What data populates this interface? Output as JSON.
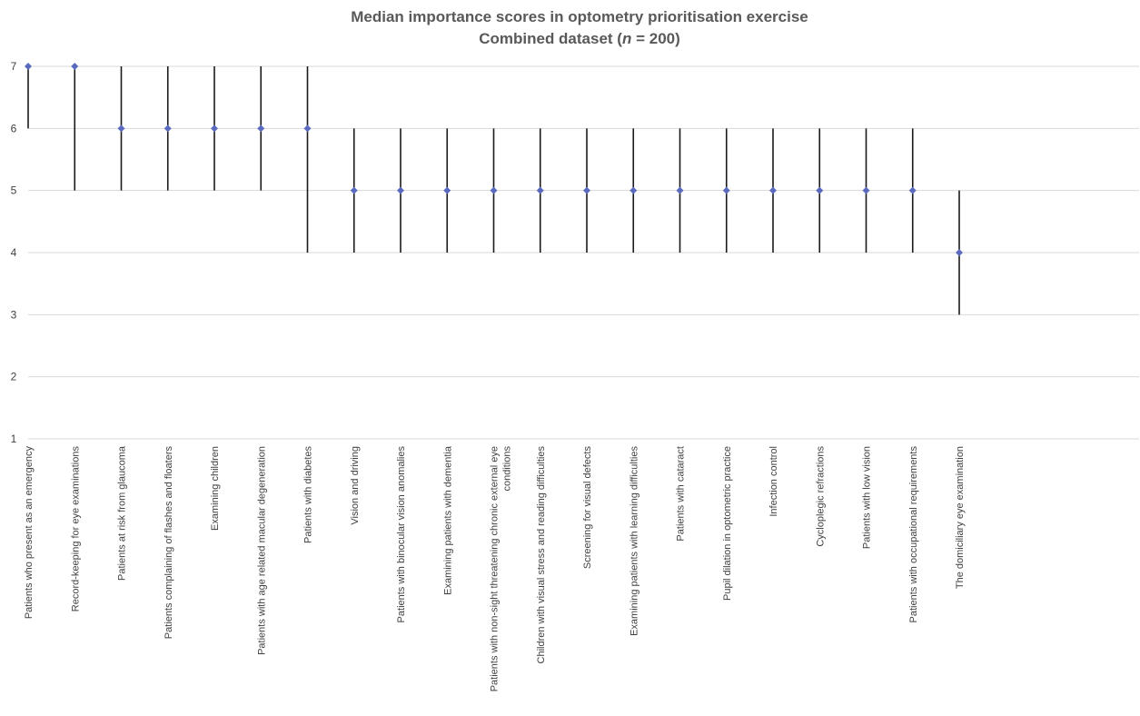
{
  "chart_data": {
    "type": "scatter",
    "title_line1": "Median importance scores in optometry prioritisation exercise",
    "title_line2_prefix": "Combined dataset (",
    "title_line2_italic": "n",
    "title_line2_suffix": " = 200)",
    "xlabel": "",
    "ylabel": "",
    "ylim": [
      1,
      7
    ],
    "yticks": [
      1,
      2,
      3,
      4,
      5,
      6,
      7
    ],
    "grid": true,
    "legend": "none",
    "marker_color": "#5a6bbf",
    "range_color": "#1a1a1a",
    "categories": [
      [
        "Patients who present as an emergency"
      ],
      [
        "Record-keeping for eye examinations"
      ],
      [
        "Patients at risk from glaucoma"
      ],
      [
        "Patients complaining of flashes and floaters"
      ],
      [
        "Examining children"
      ],
      [
        "Patients with age related macular degeneration"
      ],
      [
        "Patients with diabetes"
      ],
      [
        "Vision and driving"
      ],
      [
        "Patients with binocular vision anomalies"
      ],
      [
        "Examining patients with dementia"
      ],
      [
        "Patients with non-sight threatening chronic external eye",
        "conditions"
      ],
      [
        "Children with visual stress and reading difficulties"
      ],
      [
        "Screening for visual defects"
      ],
      [
        "Examining patients with learning difficulties"
      ],
      [
        "Patients with cataract"
      ],
      [
        "Pupil dilation in optometric practice"
      ],
      [
        "Infection control"
      ],
      [
        "Cycloplegic refractions"
      ],
      [
        "Patients with low vision"
      ],
      [
        "Patients with occupational requirements"
      ],
      [
        "The domiciliary eye examination"
      ]
    ],
    "series": [
      {
        "median": [
          7,
          7,
          6,
          6,
          6,
          6,
          6,
          5,
          5,
          5,
          5,
          5,
          5,
          5,
          5,
          5,
          5,
          5,
          5,
          5,
          4
        ],
        "low": [
          6,
          5,
          5,
          5,
          5,
          5,
          4,
          4,
          4,
          4,
          4,
          4,
          4,
          4,
          4,
          4,
          4,
          4,
          4,
          4,
          3
        ],
        "high": [
          7,
          7,
          7,
          7,
          7,
          7,
          7,
          6,
          6,
          6,
          6,
          6,
          6,
          6,
          6,
          6,
          6,
          6,
          6,
          6,
          5
        ]
      }
    ]
  }
}
